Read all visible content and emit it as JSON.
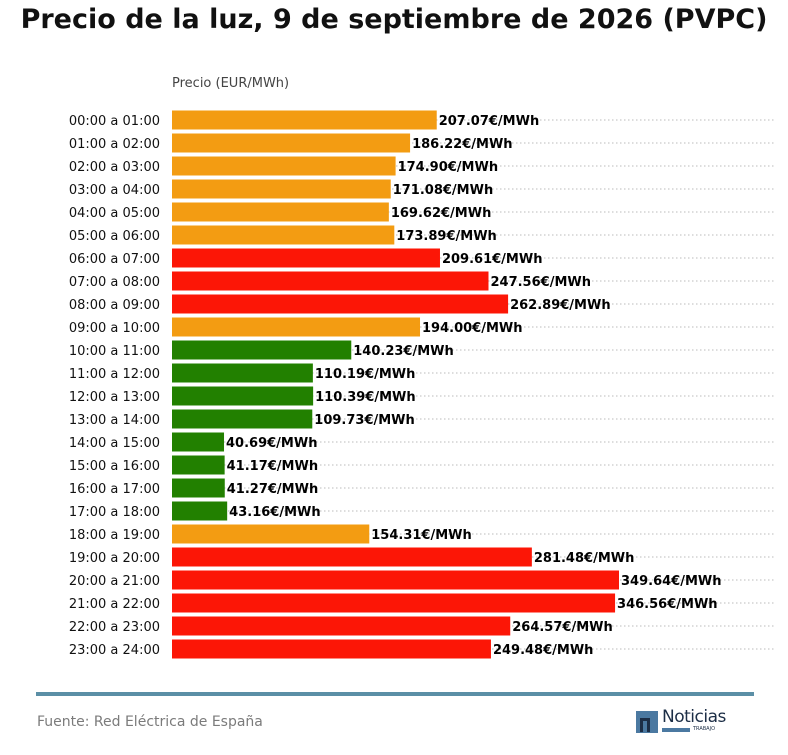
{
  "title": "Precio de la luz, 9 de septiembre de 2026 (PVPC)",
  "source": "Fuente: Red Eléctrica de España",
  "logo": {
    "name": "Noticias",
    "sub": "TRABAJO"
  },
  "colors": {
    "low": "#228000",
    "mid": "#f39c12",
    "high": "#fc1606",
    "grid": "#bbbbbb",
    "accent": "#5b8fa6"
  },
  "chart_data": {
    "type": "bar",
    "orientation": "horizontal",
    "title": "Precio de la luz, 9 de septiembre de 2026 (PVPC)",
    "xlabel": "Precio (EUR/MWh)",
    "ylabel": "",
    "value_suffix": "€/MWh",
    "xlim": [
      0,
      350
    ],
    "grid": "horizontal dotted",
    "categories": [
      "00:00 a 01:00",
      "01:00 a 02:00",
      "02:00 a 03:00",
      "03:00 a 04:00",
      "04:00 a 05:00",
      "05:00 a 06:00",
      "06:00 a 07:00",
      "07:00 a 08:00",
      "08:00 a 09:00",
      "09:00 a 10:00",
      "10:00 a 11:00",
      "11:00 a 12:00",
      "12:00 a 13:00",
      "13:00 a 14:00",
      "14:00 a 15:00",
      "15:00 a 16:00",
      "16:00 a 17:00",
      "17:00 a 18:00",
      "18:00 a 19:00",
      "19:00 a 20:00",
      "20:00 a 21:00",
      "21:00 a 22:00",
      "22:00 a 23:00",
      "23:00 a 24:00"
    ],
    "values": [
      207.07,
      186.22,
      174.9,
      171.08,
      169.62,
      173.89,
      209.61,
      247.56,
      262.89,
      194.0,
      140.23,
      110.19,
      110.39,
      109.73,
      40.69,
      41.17,
      41.27,
      43.16,
      154.31,
      281.48,
      349.64,
      346.56,
      264.57,
      249.48
    ],
    "levels": [
      "mid",
      "mid",
      "mid",
      "mid",
      "mid",
      "mid",
      "high",
      "high",
      "high",
      "mid",
      "low",
      "low",
      "low",
      "low",
      "low",
      "low",
      "low",
      "low",
      "mid",
      "high",
      "high",
      "high",
      "high",
      "high"
    ]
  }
}
